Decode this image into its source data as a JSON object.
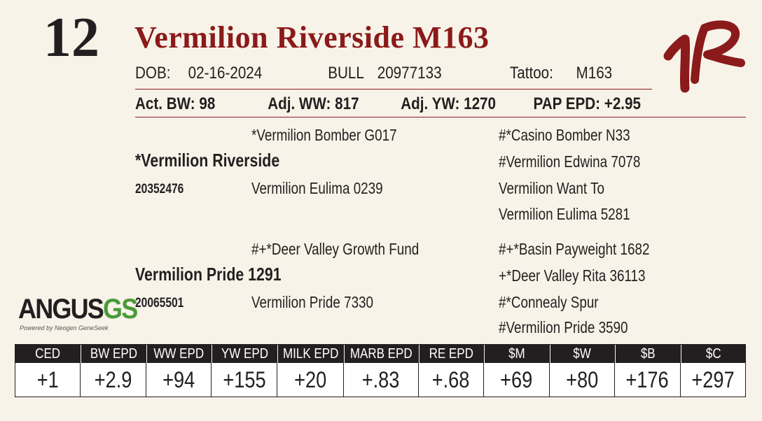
{
  "lot_number": "12",
  "name": "Vermilion Riverside M163",
  "info": {
    "dob_label": "DOB:",
    "dob": "02-16-2024",
    "sex": "BULL",
    "reg_number": "20977133",
    "tattoo_label": "Tattoo:",
    "tattoo": "M163"
  },
  "performance": {
    "act_bw": "Act. BW: 98",
    "adj_ww": "Adj. WW: 817",
    "adj_yw": "Adj. YW: 1270",
    "pap_epd": "PAP EPD: +2.95"
  },
  "pedigree": {
    "sire": {
      "name": "*Vermilion Riverside",
      "reg": "20352476",
      "sire": "*Vermilion Bomber G017",
      "dam": "Vermilion Eulima 0239",
      "sire_sire": "#*Casino Bomber N33",
      "sire_dam": "#Vermilion Edwina 7078",
      "dam_sire": "Vermilion Want To",
      "dam_dam": "Vermilion Eulima 5281"
    },
    "dam": {
      "name": "Vermilion Pride 1291",
      "reg": "20065501",
      "sire": "#+*Deer Valley Growth Fund",
      "dam": "Vermilion Pride 7330",
      "sire_sire": "#+*Basin Payweight 1682",
      "sire_dam": "+*Deer Valley Rita 36113",
      "dam_sire": "#*Connealy Spur",
      "dam_dam": "#Vermilion Pride 3590"
    }
  },
  "angus_logo": {
    "word": "ANGUS",
    "suffix": "GS",
    "tagline": "Powered by Neogen GeneSeek"
  },
  "epds": {
    "headers": [
      "CED",
      "BW EPD",
      "WW EPD",
      "YW EPD",
      "MILK EPD",
      "MARB EPD",
      "RE EPD",
      "$M",
      "$W",
      "$B",
      "$C"
    ],
    "values": [
      "+1",
      "+2.9",
      "+94",
      "+155",
      "+20",
      "+.83",
      "+.68",
      "+69",
      "+80",
      "+176",
      "+297"
    ]
  },
  "colors": {
    "name": "#8b1a1a",
    "brand": "#8b1a1a",
    "background": "#f7f3e8",
    "header_bg": "#231f20"
  }
}
